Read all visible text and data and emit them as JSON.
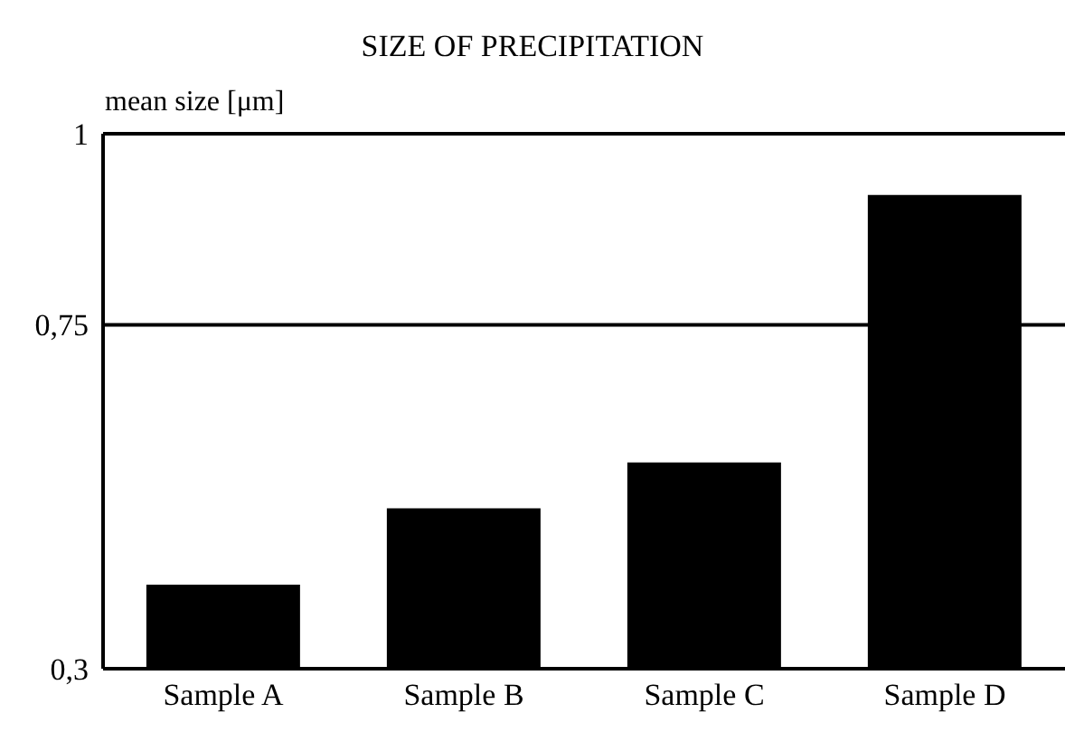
{
  "chart_data": {
    "type": "bar",
    "title": "SIZE OF PRECIPITATION",
    "ylabel": "mean size  [μm]",
    "categories": [
      "Sample A",
      "Sample B",
      "Sample C",
      "Sample D"
    ],
    "values": [
      0.41,
      0.51,
      0.57,
      0.92
    ],
    "color": "#000000",
    "ylim": [
      0.3,
      1
    ],
    "yticks": [
      {
        "value": 0.3,
        "label": "0,3"
      },
      {
        "value": 0.75,
        "label": "0,75"
      },
      {
        "value": 1,
        "label": "1"
      }
    ],
    "grid": "y"
  }
}
